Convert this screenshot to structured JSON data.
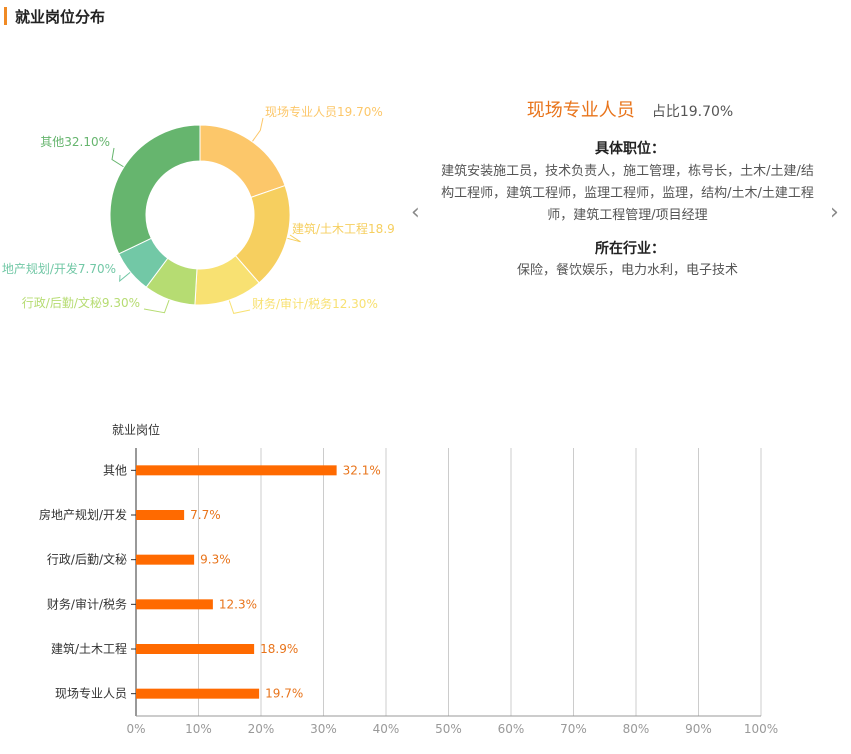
{
  "header": {
    "title": "就业岗位分布"
  },
  "info_panel": {
    "name": "现场专业人员",
    "share": "占比19.70%",
    "positions_heading": "具体职位：",
    "positions_text": "建筑安装施工员，技术负责人，施工管理，栋号长，土木/土建/结构工程师，建筑工程师，监理工程师，监理，结构/土木/土建工程师，建筑工程管理/项目经理",
    "industry_heading": "所在行业：",
    "industry_text": "保险，餐饮娱乐，电力水利，电子技术",
    "prev_icon": "chevron-left-icon",
    "next_icon": "chevron-right-icon"
  },
  "chart_data": [
    {
      "type": "pie",
      "donut": true,
      "slices": [
        {
          "label": "现场专业人员19.70%",
          "value": 19.7,
          "color": "#fcc76a"
        },
        {
          "label": "建筑/土木工程18.9",
          "value": 18.9,
          "color": "#f6cf5f"
        },
        {
          "label": "财务/审计/税务12.30%",
          "value": 12.3,
          "color": "#f8e172"
        },
        {
          "label": "行政/后勤/文秘9.30%",
          "value": 9.3,
          "color": "#b6dc72"
        },
        {
          "label": "地产规划/开发7.70%",
          "value": 7.7,
          "color": "#72c8a6"
        },
        {
          "label": "其他32.10%",
          "value": 32.1,
          "color": "#66b56e"
        }
      ]
    },
    {
      "type": "bar",
      "orientation": "horizontal",
      "ylabel": "就业岗位",
      "categories": [
        "其他",
        "房地产规划/开发",
        "行政/后勤/文秘",
        "财务/审计/税务",
        "建筑/土木工程",
        "现场专业人员"
      ],
      "values": [
        32.1,
        7.7,
        9.3,
        12.3,
        18.9,
        19.7
      ],
      "value_labels": [
        "32.1%",
        "7.7%",
        "9.3%",
        "12.3%",
        "18.9%",
        "19.7%"
      ],
      "xlim": [
        0,
        100
      ],
      "xticks": [
        "0%",
        "10%",
        "20%",
        "30%",
        "40%",
        "50%",
        "60%",
        "70%",
        "80%",
        "90%",
        "100%"
      ],
      "bar_color": "#ff6a00",
      "label_color": "#e8741b",
      "grid": true
    }
  ]
}
